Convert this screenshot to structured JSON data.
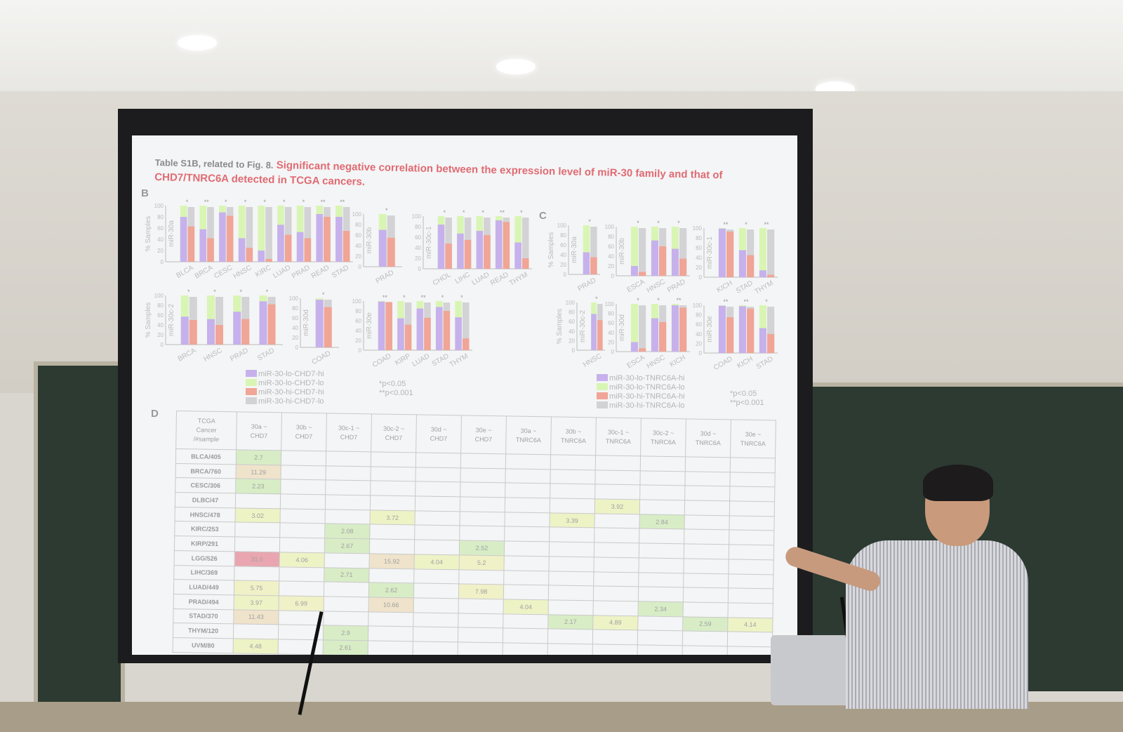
{
  "slide": {
    "title_prefix": "Table S1B, related to Fig. 8.",
    "title": "Significant negative correlation between the expression level of miR-30 family and that of CHD7/TNRC6A detected in TCGA cancers.",
    "panel_b": "B",
    "panel_c": "C",
    "panel_d": "D",
    "y_axis_label": "% Samples",
    "y_ticks": [
      "0",
      "20",
      "40",
      "60",
      "80",
      "100"
    ],
    "colors": {
      "lo_hi": "#c6b1ec",
      "lo_lo": "#d9f5b4",
      "hi_hi": "#f0a596",
      "hi_lo": "#d3d3d6"
    },
    "legend_b": [
      "miR-30-lo-CHD7-hi",
      "miR-30-lo-CHD7-lo",
      "miR-30-hi-CHD7-hi",
      "miR-30-hi-CHD7-lo"
    ],
    "legend_c": [
      "miR-30-lo-TNRC6A-hi",
      "miR-30-lo-TNRC6A-lo",
      "miR-30-hi-TNRC6A-hi",
      "miR-30-hi-TNRC6A-lo"
    ],
    "p_notes": [
      "*p<0.05",
      "**p<0.001"
    ],
    "charts_b": [
      {
        "mirna": "miR-30a",
        "bars": [
          [
            "BLCA",
            80,
            63,
            "*"
          ],
          [
            "BRCA",
            58,
            42,
            "**"
          ],
          [
            "CESC",
            88,
            82,
            "*"
          ],
          [
            "HNSC",
            42,
            25,
            "*"
          ],
          [
            "KIRC",
            20,
            5,
            "*"
          ],
          [
            "LUAD",
            66,
            48,
            "*"
          ],
          [
            "PRAD",
            53,
            42,
            "*"
          ],
          [
            "READ",
            85,
            80,
            "**"
          ],
          [
            "STAD",
            80,
            55,
            "**"
          ]
        ]
      },
      {
        "mirna": "miR-30b",
        "bars": [
          [
            "PRAD",
            70,
            55,
            "*"
          ]
        ]
      },
      {
        "mirna": "miR-30c-1",
        "bars": [
          [
            "CHOL",
            84,
            48,
            "*"
          ],
          [
            "LIHC",
            67,
            55,
            "*"
          ],
          [
            "LUAD",
            72,
            64,
            "*"
          ],
          [
            "READ",
            92,
            89,
            "**"
          ],
          [
            "THYM",
            50,
            20,
            "*"
          ]
        ]
      },
      {
        "mirna": "miR-30c-2",
        "bars": [
          [
            "BRCA",
            57,
            50,
            "*"
          ],
          [
            "HNSC",
            52,
            40,
            "*"
          ],
          [
            "PRAD",
            67,
            52,
            "*"
          ],
          [
            "STAD",
            88,
            82,
            "*"
          ]
        ]
      },
      {
        "mirna": "miR-30d",
        "bars": [
          [
            "COAD",
            97,
            82,
            "*"
          ]
        ]
      },
      {
        "mirna": "miR-30e",
        "bars": [
          [
            "COAD",
            99,
            98,
            "**"
          ],
          [
            "KIRP",
            65,
            52,
            "*"
          ],
          [
            "LUAD",
            85,
            66,
            "**"
          ],
          [
            "STAD",
            88,
            80,
            "*"
          ],
          [
            "THYM",
            67,
            24,
            "*"
          ]
        ]
      }
    ],
    "charts_c": [
      {
        "mirna": "miR-30a",
        "bars": [
          [
            "PRAD",
            45,
            35,
            "*"
          ]
        ]
      },
      {
        "mirna": "miR-30b",
        "bars": [
          [
            "ESCA",
            20,
            8,
            "*"
          ],
          [
            "HNSC",
            72,
            60,
            "*"
          ],
          [
            "PRAD",
            55,
            35,
            "*"
          ]
        ]
      },
      {
        "mirna": "miR-30c-1",
        "bars": [
          [
            "KICH",
            99,
            93,
            "**"
          ],
          [
            "STAD",
            55,
            45,
            "*"
          ],
          [
            "THYM",
            14,
            5,
            "**"
          ]
        ]
      },
      {
        "mirna": "miR-30c-2",
        "bars": [
          [
            "HNSC",
            76,
            63,
            "*"
          ]
        ]
      },
      {
        "mirna": "miR-30d",
        "bars": [
          [
            "ESCA",
            20,
            7,
            "*"
          ],
          [
            "HNSC",
            70,
            62,
            "*"
          ],
          [
            "KICH",
            97,
            92,
            "**"
          ]
        ]
      },
      {
        "mirna": "miR-30e",
        "bars": [
          [
            "COAD",
            99,
            75,
            "**"
          ],
          [
            "KICH",
            98,
            93,
            "**"
          ],
          [
            "STAD",
            52,
            40,
            "*"
          ]
        ]
      }
    ],
    "table": {
      "corner": [
        "TCGA",
        "Cancer",
        "/#sample"
      ],
      "columns": [
        [
          "30a ~",
          "CHD7"
        ],
        [
          "30b ~",
          "CHD7"
        ],
        [
          "30c-1 ~",
          "CHD7"
        ],
        [
          "30c-2 ~",
          "CHD7"
        ],
        [
          "30d ~",
          "CHD7"
        ],
        [
          "30e ~",
          "CHD7"
        ],
        [
          "30a ~",
          "TNRC6A"
        ],
        [
          "30b ~",
          "TNRC6A"
        ],
        [
          "30c-1 ~",
          "TNRC6A"
        ],
        [
          "30c-2 ~",
          "TNRC6A"
        ],
        [
          "30d ~",
          "TNRC6A"
        ],
        [
          "30e ~",
          "TNRC6A"
        ]
      ],
      "rows": [
        {
          "name": "BLCA/405",
          "cells": [
            "2.7",
            "",
            "",
            "",
            "",
            "",
            "",
            "",
            "",
            "",
            "",
            ""
          ]
        },
        {
          "name": "BRCA/760",
          "cells": [
            "11.29",
            "",
            "",
            "",
            "",
            "",
            "",
            "",
            "",
            "",
            "",
            ""
          ]
        },
        {
          "name": "CESC/306",
          "cells": [
            "2.23",
            "",
            "",
            "",
            "",
            "",
            "",
            "",
            "",
            "",
            "",
            ""
          ]
        },
        {
          "name": "DLBC/47",
          "cells": [
            "",
            "",
            "",
            "",
            "",
            "",
            "",
            "",
            "3.92",
            "",
            "",
            ""
          ]
        },
        {
          "name": "HNSC/478",
          "cells": [
            "3.02",
            "",
            "",
            "3.72",
            "",
            "",
            "",
            "3.39",
            "",
            "2.84",
            "",
            ""
          ]
        },
        {
          "name": "KIRC/253",
          "cells": [
            "",
            "",
            "2.08",
            "",
            "",
            "",
            "",
            "",
            "",
            "",
            "",
            ""
          ]
        },
        {
          "name": "KIRP/291",
          "cells": [
            "",
            "",
            "2.67",
            "",
            "",
            "2.52",
            "",
            "",
            "",
            "",
            "",
            ""
          ]
        },
        {
          "name": "LGG/526",
          "cells": [
            "31.5",
            "4.06",
            "",
            "15.92",
            "4.04",
            "5.2",
            "",
            "",
            "",
            "",
            "",
            ""
          ]
        },
        {
          "name": "LIHC/369",
          "cells": [
            "",
            "",
            "2.71",
            "",
            "",
            "",
            "",
            "",
            "",
            "",
            "",
            ""
          ]
        },
        {
          "name": "LUAD/449",
          "cells": [
            "5.75",
            "",
            "",
            "2.62",
            "",
            "7.98",
            "",
            "",
            "",
            "",
            "",
            ""
          ]
        },
        {
          "name": "PRAD/494",
          "cells": [
            "3.97",
            "6.99",
            "",
            "10.66",
            "",
            "",
            "4.04",
            "",
            "",
            "2.34",
            "",
            ""
          ]
        },
        {
          "name": "STAD/370",
          "cells": [
            "11.43",
            "",
            "",
            "",
            "",
            "",
            "",
            "2.17",
            "4.89",
            "",
            "2.59",
            "4.14"
          ]
        },
        {
          "name": "THYM/120",
          "cells": [
            "",
            "",
            "2.9",
            "",
            "",
            "",
            "",
            "",
            "",
            "",
            "",
            ""
          ]
        },
        {
          "name": "UVM/80",
          "cells": [
            "4.48",
            "",
            "2.61",
            "",
            "",
            "",
            "",
            "",
            "",
            "",
            "",
            ""
          ]
        }
      ]
    }
  }
}
